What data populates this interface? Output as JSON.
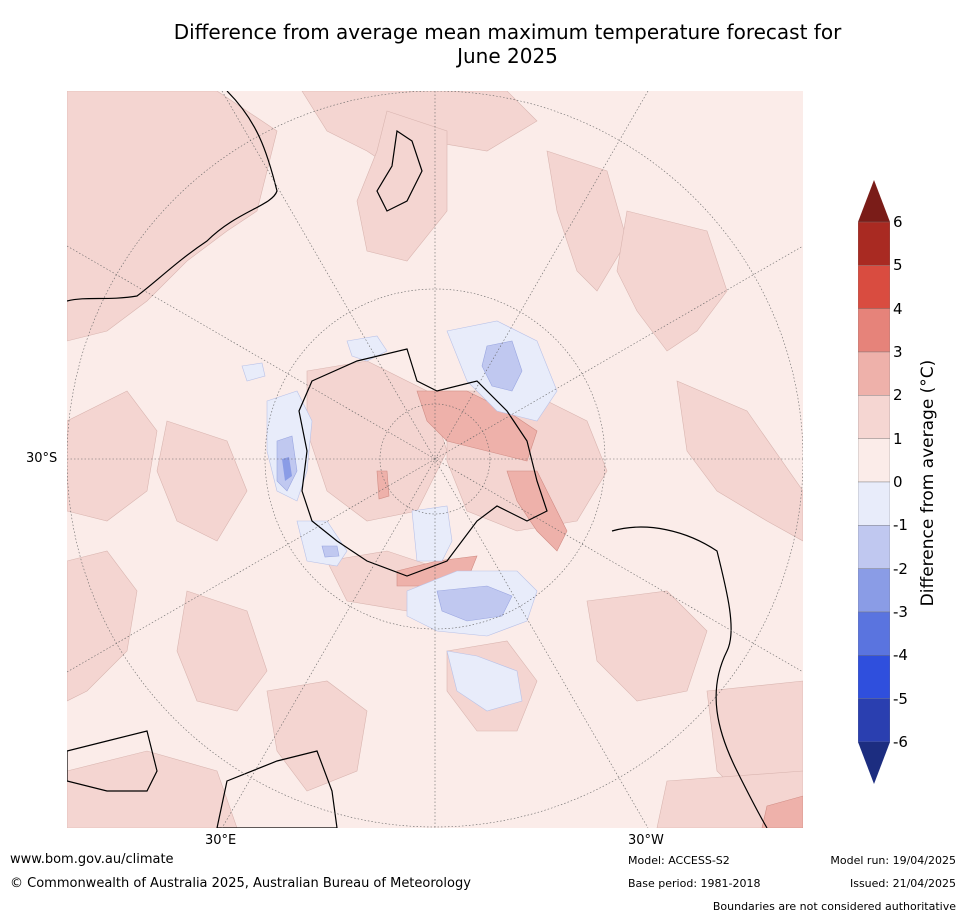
{
  "title_line1": "Difference from average mean maximum temperature forecast for",
  "title_line2": "June 2025",
  "labels": {
    "lat_30s": "30°S",
    "lon_30e": "30°E",
    "lon_30w": "30°W"
  },
  "colorbar": {
    "title": "Difference from average (°C)",
    "ticks": [
      "6",
      "5",
      "4",
      "3",
      "2",
      "1",
      "0",
      "-1",
      "-2",
      "-3",
      "-4",
      "-5",
      "-6"
    ],
    "colors": [
      "#7a1c18",
      "#a92a22",
      "#d94c40",
      "#e6837a",
      "#eeb1aa",
      "#f5d6d2",
      "#fbece9",
      "#e8ecfa",
      "#c0c8f0",
      "#8a9ce6",
      "#5a74df",
      "#2f4fdd",
      "#2a3fb0",
      "#1c2d80"
    ]
  },
  "footer": {
    "website": "www.bom.gov.au/climate",
    "copyright": "© Commonwealth of Australia 2025, Australian Bureau of Meteorology",
    "model": "Model: ACCESS-S2",
    "base_period": "Base period: 1981-2018",
    "model_run": "Model run: 19/04/2025",
    "issued": "Issued: 21/04/2025",
    "disclaimer": "Boundaries are not considered authoritative"
  }
}
